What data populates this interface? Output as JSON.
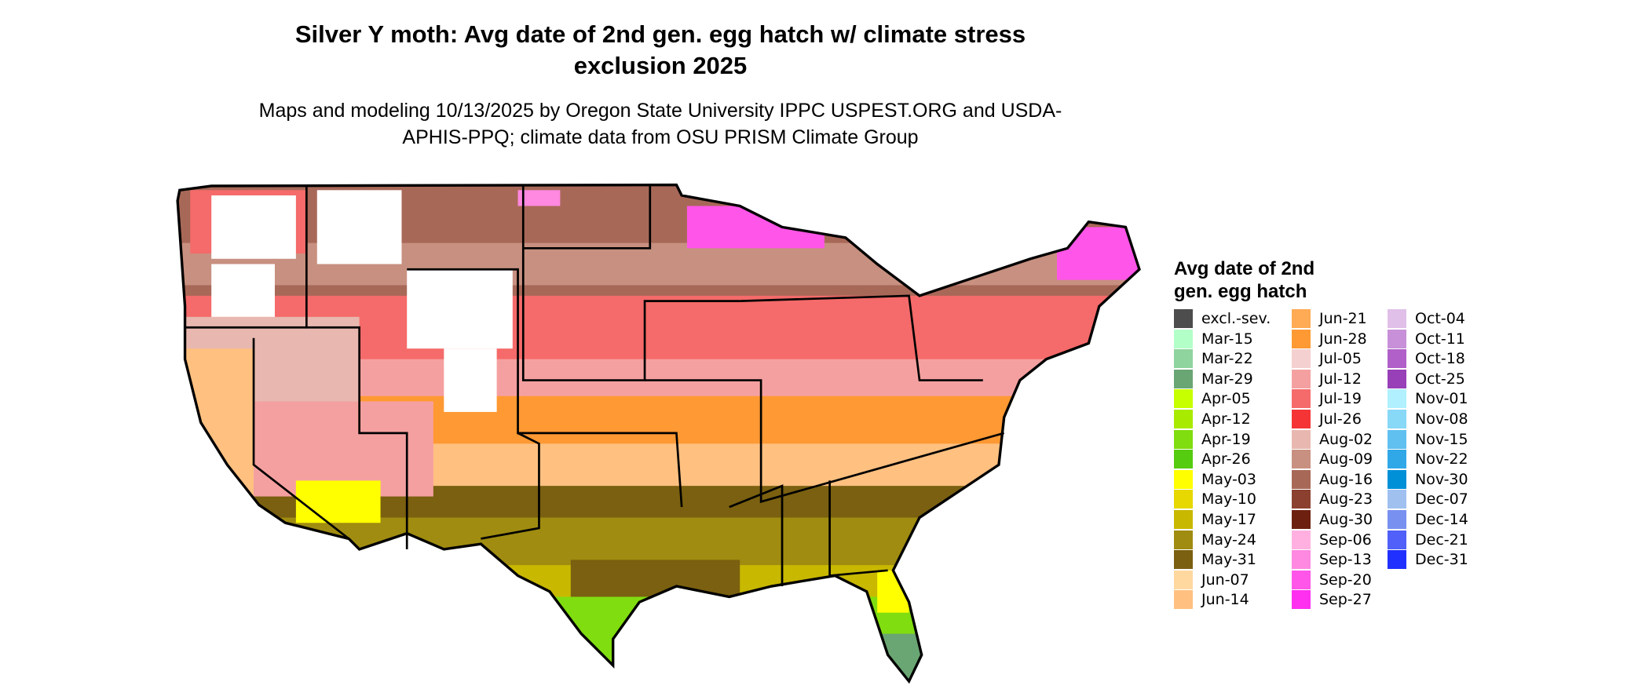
{
  "title": "Silver Y moth: Avg date of 2nd gen. egg hatch w/ climate stress exclusion 2025",
  "subtitle": "Maps and modeling 10/13/2025 by Oregon State University IPPC USPEST.ORG and USDA-APHIS-PPQ; climate data from OSU PRISM Climate Group",
  "legend": {
    "title": "Avg date of 2nd gen. egg hatch",
    "entries": [
      {
        "label": "excl.-sev.",
        "color": "#4d4d4d"
      },
      {
        "label": "Mar-15",
        "color": "#b3ffc8"
      },
      {
        "label": "Mar-22",
        "color": "#8fd49e"
      },
      {
        "label": "Mar-29",
        "color": "#6aa673"
      },
      {
        "label": "Apr-05",
        "color": "#c8ff00"
      },
      {
        "label": "Apr-12",
        "color": "#a8eb00"
      },
      {
        "label": "Apr-19",
        "color": "#80dd10"
      },
      {
        "label": "Apr-26",
        "color": "#55cc10"
      },
      {
        "label": "May-03",
        "color": "#ffff00"
      },
      {
        "label": "May-10",
        "color": "#e6d800"
      },
      {
        "label": "May-17",
        "color": "#c8b800"
      },
      {
        "label": "May-24",
        "color": "#a08c10"
      },
      {
        "label": "May-31",
        "color": "#7a6010"
      },
      {
        "label": "Jun-07",
        "color": "#ffd8a0"
      },
      {
        "label": "Jun-14",
        "color": "#ffc080"
      },
      {
        "label": "Jun-21",
        "color": "#ffaa55"
      },
      {
        "label": "Jun-28",
        "color": "#ff9933"
      },
      {
        "label": "Jul-05",
        "color": "#f5d0d0"
      },
      {
        "label": "Jul-12",
        "color": "#f5a0a0"
      },
      {
        "label": "Jul-19",
        "color": "#f56a6a"
      },
      {
        "label": "Jul-26",
        "color": "#f53535"
      },
      {
        "label": "Aug-02",
        "color": "#e8b8b0"
      },
      {
        "label": "Aug-09",
        "color": "#c89080"
      },
      {
        "label": "Aug-16",
        "color": "#a86858"
      },
      {
        "label": "Aug-23",
        "color": "#8c4030"
      },
      {
        "label": "Aug-30",
        "color": "#6e2010"
      },
      {
        "label": "Sep-06",
        "color": "#ffb0e0"
      },
      {
        "label": "Sep-13",
        "color": "#ff88e0"
      },
      {
        "label": "Sep-20",
        "color": "#ff55e8"
      },
      {
        "label": "Sep-27",
        "color": "#ff30f0"
      },
      {
        "label": "Oct-04",
        "color": "#e0c0e8"
      },
      {
        "label": "Oct-11",
        "color": "#c890d8"
      },
      {
        "label": "Oct-18",
        "color": "#b060c8"
      },
      {
        "label": "Oct-25",
        "color": "#9840b8"
      },
      {
        "label": "Nov-01",
        "color": "#b0f0ff"
      },
      {
        "label": "Nov-08",
        "color": "#88d8f8"
      },
      {
        "label": "Nov-15",
        "color": "#60c0f0"
      },
      {
        "label": "Nov-22",
        "color": "#30a8e8"
      },
      {
        "label": "Nov-30",
        "color": "#0090d8"
      },
      {
        "label": "Dec-07",
        "color": "#a0c0f0"
      },
      {
        "label": "Dec-14",
        "color": "#7890f0"
      },
      {
        "label": "Dec-21",
        "color": "#5060f8"
      },
      {
        "label": "Dec-31",
        "color": "#2030ff"
      }
    ]
  }
}
